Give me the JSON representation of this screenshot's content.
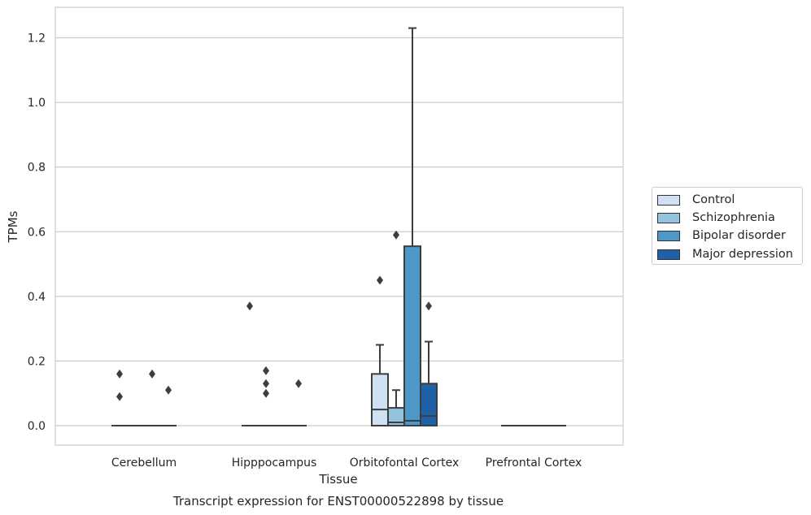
{
  "chart_data": {
    "type": "box",
    "title": "Transcript expression for ENST00000522898 by tissue",
    "xlabel": "Tissue",
    "ylabel": "TPMs",
    "ylim": [
      -0.06,
      1.29
    ],
    "yticks": [
      0.0,
      0.2,
      0.4,
      0.6,
      0.8,
      1.0,
      1.2
    ],
    "ytick_labels": [
      "0.0",
      "0.2",
      "0.4",
      "0.6",
      "0.8",
      "1.0",
      "1.2"
    ],
    "categories": [
      "Cerebellum",
      "Hipppocampus",
      "Orbitofontal Cortex",
      "Prefrontal Cortex"
    ],
    "grid": "horizontal",
    "legend_position": "right",
    "series": [
      {
        "name": "Control",
        "color": "#cfe1f2",
        "boxes": [
          {
            "q1": 0,
            "median": 0,
            "q3": 0,
            "whislo": 0,
            "whishi": 0,
            "fliers": [
              0.16,
              0.09
            ]
          },
          {
            "q1": 0,
            "median": 0,
            "q3": 0,
            "whislo": 0,
            "whishi": 0,
            "fliers": [
              0.37
            ]
          },
          {
            "q1": 0,
            "median": 0.05,
            "q3": 0.16,
            "whislo": 0,
            "whishi": 0.25,
            "fliers": [
              0.45
            ]
          },
          {
            "q1": 0,
            "median": 0,
            "q3": 0,
            "whislo": 0,
            "whishi": 0,
            "fliers": []
          }
        ]
      },
      {
        "name": "Schizophrenia",
        "color": "#93c4de",
        "boxes": [
          {
            "q1": 0,
            "median": 0,
            "q3": 0,
            "whislo": 0,
            "whishi": 0,
            "fliers": []
          },
          {
            "q1": 0,
            "median": 0,
            "q3": 0,
            "whislo": 0,
            "whishi": 0,
            "fliers": [
              0.17,
              0.13,
              0.1
            ]
          },
          {
            "q1": 0,
            "median": 0.01,
            "q3": 0.055,
            "whislo": 0,
            "whishi": 0.11,
            "fliers": [
              0.59
            ]
          },
          {
            "q1": 0,
            "median": 0,
            "q3": 0,
            "whislo": 0,
            "whishi": 0,
            "fliers": []
          }
        ]
      },
      {
        "name": "Bipolar disorder",
        "color": "#4b98c9",
        "boxes": [
          {
            "q1": 0,
            "median": 0,
            "q3": 0,
            "whislo": 0,
            "whishi": 0,
            "fliers": [
              0.16
            ]
          },
          {
            "q1": 0,
            "median": 0,
            "q3": 0,
            "whislo": 0,
            "whishi": 0,
            "fliers": []
          },
          {
            "q1": 0,
            "median": 0.015,
            "q3": 0.555,
            "whislo": 0,
            "whishi": 1.23,
            "fliers": []
          },
          {
            "q1": 0,
            "median": 0,
            "q3": 0,
            "whislo": 0,
            "whishi": 0,
            "fliers": []
          }
        ]
      },
      {
        "name": "Major depression",
        "color": "#2060a6",
        "boxes": [
          {
            "q1": 0,
            "median": 0,
            "q3": 0,
            "whislo": 0,
            "whishi": 0,
            "fliers": [
              0.11
            ]
          },
          {
            "q1": 0,
            "median": 0,
            "q3": 0,
            "whislo": 0,
            "whishi": 0,
            "fliers": [
              0.13
            ]
          },
          {
            "q1": 0,
            "median": 0.03,
            "q3": 0.13,
            "whislo": 0,
            "whishi": 0.26,
            "fliers": [
              0.37
            ]
          },
          {
            "q1": 0,
            "median": 0,
            "q3": 0,
            "whislo": 0,
            "whishi": 0,
            "fliers": []
          }
        ]
      }
    ]
  }
}
